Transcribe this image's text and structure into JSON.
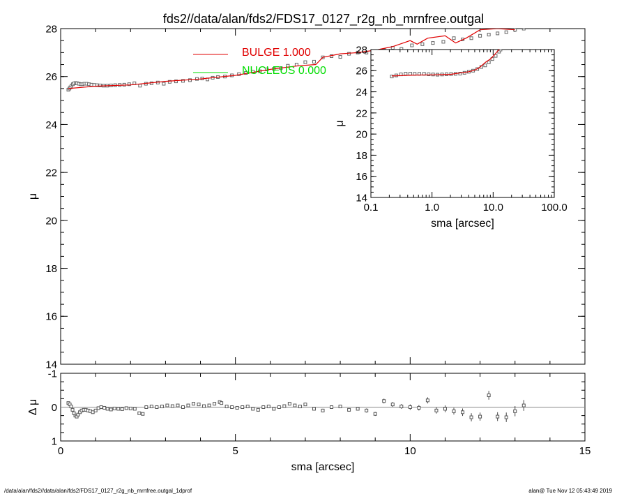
{
  "title": "fds2//data/alan/fds2/FDS17_0127_r2g_nb_mrnfree.outgal",
  "footer": {
    "left": "/data/alan/fds2//data/alan/fds2/FDS17_0127_r2g_nb_mrnfree.outgal_1dprof",
    "right": "alan@  Tue Nov 12 05:43:49 2019"
  },
  "legend": [
    {
      "label": "BULGE  1.000",
      "color": "#e00000"
    },
    {
      "label": "NUCLEUS  0.000",
      "color": "#00dd00"
    }
  ],
  "colors": {
    "model": "#e00000",
    "data": "#666666",
    "nucleus": "#00dd00"
  },
  "chart_data": [
    {
      "type": "scatter",
      "title": "",
      "xlabel": "",
      "ylabel": "μ",
      "xlim": [
        0,
        15
      ],
      "ylim": [
        28,
        14
      ],
      "xticks": [
        "0",
        "5",
        "10",
        "15"
      ],
      "yticks": [
        "14",
        "16",
        "18",
        "20",
        "22",
        "24",
        "26",
        "28"
      ],
      "series": [
        {
          "name": "data",
          "style": "squares",
          "x": [
            0.22,
            0.25,
            0.28,
            0.31,
            0.35,
            0.39,
            0.43,
            0.47,
            0.52,
            0.57,
            0.62,
            0.68,
            0.74,
            0.81,
            0.88,
            0.96,
            1.04,
            1.13,
            1.23,
            1.33,
            1.44,
            1.56,
            1.69,
            1.82,
            1.96,
            2.11,
            2.27,
            2.44,
            2.6,
            2.78,
            2.95,
            3.12,
            3.3,
            3.5,
            3.7,
            3.9,
            4.05,
            4.2,
            4.35,
            4.5,
            4.7,
            4.9,
            5.1,
            5.3,
            5.5,
            5.7,
            5.9,
            6.1,
            6.3,
            6.5,
            6.75,
            7.0,
            7.25,
            7.5,
            7.75,
            8.0,
            8.25,
            8.5,
            8.75,
            9.0,
            9.25,
            9.5,
            9.75,
            10.05,
            10.35,
            10.65,
            10.95,
            11.25,
            11.5,
            11.75,
            12.0,
            12.25,
            12.5,
            12.75,
            13.0,
            13.25
          ],
          "y": [
            25.45,
            25.5,
            25.55,
            25.62,
            25.68,
            25.72,
            25.73,
            25.72,
            25.7,
            25.68,
            25.68,
            25.7,
            25.7,
            25.68,
            25.66,
            25.65,
            25.64,
            25.63,
            25.62,
            25.62,
            25.63,
            25.64,
            25.65,
            25.66,
            25.68,
            25.72,
            25.62,
            25.7,
            25.72,
            25.75,
            25.7,
            25.78,
            25.8,
            25.82,
            25.85,
            25.9,
            25.92,
            25.88,
            25.95,
            25.98,
            26.0,
            26.05,
            26.1,
            26.15,
            26.2,
            26.22,
            26.3,
            26.32,
            26.35,
            26.45,
            26.5,
            26.6,
            26.62,
            26.8,
            26.85,
            26.82,
            26.95,
            27.0,
            27.0,
            27.05,
            27.1,
            27.2,
            27.15,
            27.3,
            27.35,
            27.4,
            27.45,
            27.6,
            27.55,
            27.6,
            27.7,
            27.75,
            27.8,
            27.85,
            27.95,
            28.0
          ]
        },
        {
          "name": "BULGE  1.000",
          "style": "line",
          "x": [
            0.22,
            1,
            2,
            3,
            4,
            5,
            6,
            6.8,
            7.3,
            7.5,
            8,
            8.5,
            9,
            9.5,
            10,
            10.2,
            10.5,
            11,
            11.3,
            11.6,
            12,
            12.5,
            13
          ],
          "y": [
            25.5,
            25.6,
            25.65,
            25.8,
            25.9,
            26.05,
            26.3,
            26.45,
            26.5,
            26.8,
            26.95,
            27.0,
            27.1,
            27.25,
            27.5,
            27.35,
            27.6,
            27.7,
            27.4,
            27.6,
            27.95,
            28.0,
            27.95
          ]
        }
      ]
    },
    {
      "type": "scatter",
      "title": "",
      "xlabel": "sma [arcsec]",
      "ylabel": "Δ μ",
      "xlim": [
        0,
        15
      ],
      "ylim": [
        -1,
        1
      ],
      "xticks": [
        "0",
        "5",
        "10",
        "15"
      ],
      "yticks": [
        "-1",
        "0",
        "1"
      ],
      "series": [
        {
          "name": "residual",
          "style": "points_with_errorbars",
          "x": [
            0.22,
            0.26,
            0.3,
            0.34,
            0.38,
            0.42,
            0.46,
            0.5,
            0.55,
            0.6,
            0.66,
            0.72,
            0.78,
            0.85,
            0.92,
            1.0,
            1.08,
            1.16,
            1.25,
            1.34,
            1.44,
            1.54,
            1.65,
            1.76,
            1.88,
            2.0,
            2.12,
            2.25,
            2.35,
            2.45,
            2.6,
            2.75,
            2.9,
            3.05,
            3.2,
            3.35,
            3.5,
            3.65,
            3.8,
            3.95,
            4.1,
            4.25,
            4.4,
            4.55,
            4.6,
            4.75,
            4.9,
            5.05,
            5.2,
            5.35,
            5.5,
            5.65,
            5.8,
            5.95,
            6.1,
            6.25,
            6.4,
            6.55,
            6.7,
            6.85,
            7.0,
            7.25,
            7.5,
            7.75,
            8.0,
            8.25,
            8.5,
            8.75,
            9.0,
            9.25,
            9.5,
            9.75,
            10.0,
            10.25,
            10.5,
            10.75,
            11.0,
            11.25,
            11.5,
            11.75,
            12.0,
            12.25,
            12.5,
            12.75,
            13.0,
            13.25
          ],
          "y": [
            -0.12,
            -0.08,
            -0.02,
            0.08,
            0.18,
            0.25,
            0.28,
            0.22,
            0.15,
            0.1,
            0.08,
            0.08,
            0.1,
            0.12,
            0.15,
            0.1,
            0.03,
            0.0,
            0.02,
            0.05,
            0.07,
            0.04,
            0.05,
            0.06,
            0.03,
            0.04,
            0.05,
            0.18,
            0.2,
            0.0,
            -0.02,
            0.0,
            -0.02,
            -0.05,
            -0.03,
            -0.05,
            0.0,
            -0.05,
            -0.1,
            -0.08,
            -0.03,
            -0.05,
            -0.1,
            -0.15,
            -0.12,
            -0.02,
            0.0,
            0.02,
            0.0,
            -0.02,
            0.05,
            0.08,
            0.0,
            -0.02,
            0.05,
            0.0,
            -0.03,
            -0.1,
            -0.05,
            -0.02,
            -0.08,
            0.05,
            0.1,
            0.0,
            -0.02,
            0.08,
            0.05,
            0.1,
            0.2,
            -0.18,
            -0.08,
            -0.02,
            0.0,
            0.02,
            -0.2,
            0.1,
            0.05,
            0.12,
            0.15,
            0.3,
            0.28,
            -0.35,
            0.28,
            0.3,
            0.12,
            -0.05
          ],
          "err": [
            0.02,
            0.02,
            0.02,
            0.02,
            0.02,
            0.02,
            0.02,
            0.02,
            0.02,
            0.02,
            0.02,
            0.02,
            0.02,
            0.02,
            0.02,
            0.02,
            0.02,
            0.02,
            0.02,
            0.02,
            0.02,
            0.02,
            0.02,
            0.02,
            0.02,
            0.02,
            0.02,
            0.03,
            0.03,
            0.03,
            0.03,
            0.03,
            0.03,
            0.03,
            0.03,
            0.03,
            0.03,
            0.03,
            0.03,
            0.03,
            0.03,
            0.03,
            0.03,
            0.03,
            0.03,
            0.04,
            0.04,
            0.04,
            0.04,
            0.04,
            0.04,
            0.04,
            0.04,
            0.04,
            0.04,
            0.04,
            0.04,
            0.04,
            0.04,
            0.04,
            0.05,
            0.05,
            0.05,
            0.05,
            0.05,
            0.05,
            0.05,
            0.06,
            0.06,
            0.07,
            0.07,
            0.07,
            0.08,
            0.08,
            0.09,
            0.09,
            0.1,
            0.1,
            0.11,
            0.12,
            0.12,
            0.13,
            0.13,
            0.14,
            0.15,
            0.16
          ]
        }
      ]
    },
    {
      "type": "scatter",
      "title": "",
      "xlabel": "sma [arcsec]",
      "ylabel": "μ",
      "xscale": "log",
      "xlim": [
        0.1,
        100.0
      ],
      "ylim": [
        28,
        14
      ],
      "xticks": [
        "0.1",
        "1.0",
        "10.0",
        "100.0"
      ],
      "yticks": [
        "14",
        "16",
        "18",
        "20",
        "22",
        "24",
        "26",
        "28"
      ],
      "series": [
        {
          "name": "data",
          "style": "squares",
          "x": [
            0.22,
            0.26,
            0.31,
            0.37,
            0.44,
            0.52,
            0.62,
            0.74,
            0.88,
            1.04,
            1.23,
            1.46,
            1.73,
            2.05,
            2.43,
            2.88,
            3.4,
            4.0,
            4.7,
            5.5,
            6.4,
            7.4,
            8.5,
            9.7,
            11.0,
            12.5,
            13.2
          ],
          "y": [
            25.45,
            25.55,
            25.65,
            25.72,
            25.72,
            25.7,
            25.7,
            25.7,
            25.66,
            25.64,
            25.62,
            25.64,
            25.66,
            25.68,
            25.7,
            25.72,
            25.8,
            25.9,
            26.0,
            26.15,
            26.35,
            26.5,
            26.8,
            27.1,
            27.4,
            27.8,
            28.0
          ]
        },
        {
          "name": "BULGE  1.000",
          "style": "line",
          "x": [
            0.22,
            0.5,
            1.0,
            2.0,
            3.0,
            4.0,
            5.0,
            6.0,
            7.5,
            9.0,
            10.5,
            12.0,
            13.2
          ],
          "y": [
            25.5,
            25.58,
            25.6,
            25.65,
            25.8,
            25.9,
            26.05,
            26.3,
            26.8,
            27.1,
            27.5,
            27.9,
            28.1
          ]
        }
      ]
    }
  ]
}
